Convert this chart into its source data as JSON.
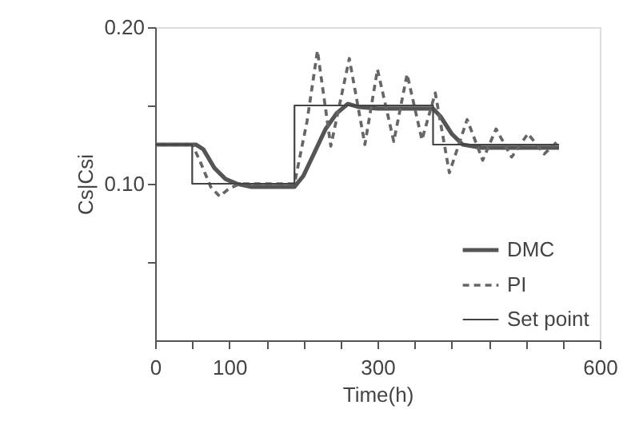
{
  "chart_data": {
    "type": "line",
    "xlabel": "Time(h)",
    "ylabel": "Cs|Csi",
    "xlim": [
      0,
      600
    ],
    "ylim": [
      0,
      0.2
    ],
    "xticks": [
      0,
      {
        "value": 50,
        "label": null
      },
      100,
      {
        "value": 150,
        "label": null
      },
      {
        "value": 200,
        "label": null
      },
      {
        "value": 250,
        "label": null
      },
      300,
      {
        "value": 350,
        "label": null
      },
      {
        "value": 400,
        "label": null
      },
      {
        "value": 450,
        "label": null
      },
      {
        "value": 500,
        "label": null
      },
      {
        "value": 550,
        "label": null
      },
      600
    ],
    "yticks": [
      {
        "value": 0.05,
        "label": null
      },
      {
        "value": 0.1,
        "label": "0.10"
      },
      {
        "value": 0.15,
        "label": null
      },
      {
        "value": 0.2,
        "label": "0.20"
      }
    ],
    "grid": false,
    "legend": "bottom right",
    "series": [
      {
        "name": "DMC",
        "color": "#555555",
        "line_style": "solid",
        "x": [
          0,
          55,
          65,
          80,
          95,
          110,
          130,
          188,
          200,
          215,
          230,
          245,
          260,
          275,
          300,
          375,
          385,
          400,
          415,
          440,
          545
        ],
        "values": [
          0.125,
          0.125,
          0.122,
          0.11,
          0.103,
          0.1,
          0.098,
          0.098,
          0.105,
          0.12,
          0.135,
          0.145,
          0.151,
          0.149,
          0.148,
          0.148,
          0.143,
          0.132,
          0.125,
          0.123,
          0.123
        ]
      },
      {
        "name": "PI",
        "color": "#666666",
        "line_style": "dashed",
        "x": [
          0,
          50,
          60,
          75,
          87,
          100,
          115,
          188,
          205,
          219,
          237,
          262,
          283,
          300,
          322,
          340,
          360,
          378,
          397,
          421,
          442,
          460,
          481,
          503,
          525,
          545
        ],
        "values": [
          0.125,
          0.125,
          0.115,
          0.098,
          0.092,
          0.097,
          0.1,
          0.1,
          0.14,
          0.185,
          0.124,
          0.18,
          0.125,
          0.173,
          0.127,
          0.17,
          0.128,
          0.158,
          0.107,
          0.141,
          0.115,
          0.135,
          0.117,
          0.132,
          0.119,
          0.128
        ]
      },
      {
        "name": "Set point",
        "color": "#444444",
        "type": "step",
        "line_style": "solid",
        "x": [
          0,
          50,
          188,
          375,
          545
        ],
        "values": [
          0.125,
          0.1,
          0.15,
          0.125,
          0.125
        ]
      }
    ]
  }
}
